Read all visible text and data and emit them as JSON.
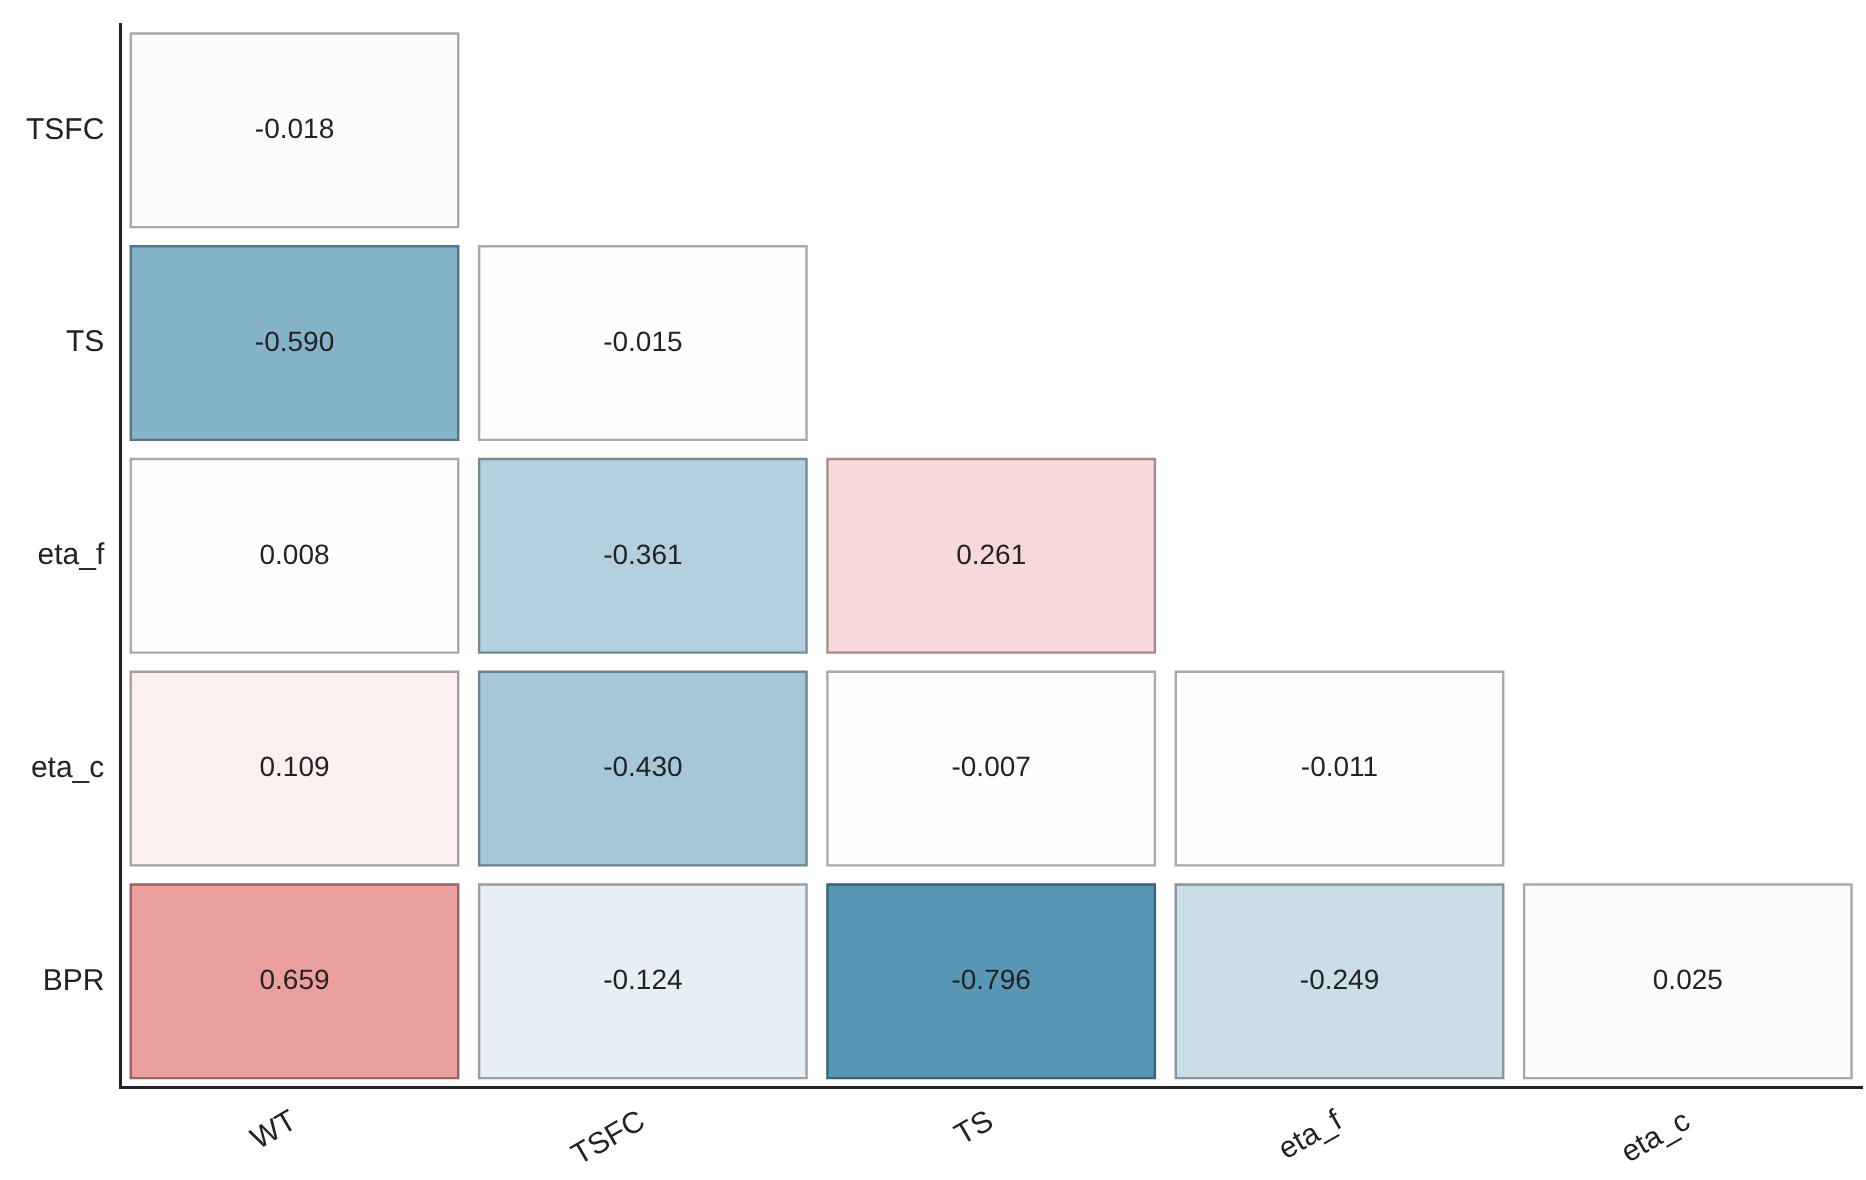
{
  "chart_data": {
    "type": "heatmap",
    "categories": [
      "WT",
      "TSFC",
      "TS",
      "eta_f",
      "eta_c"
    ],
    "y_categories": [
      "TSFC",
      "TS",
      "eta_f",
      "eta_c",
      "BPR"
    ],
    "cells": [
      [
        -0.018,
        null,
        null,
        null,
        null
      ],
      [
        -0.59,
        -0.015,
        null,
        null,
        null
      ],
      [
        0.008,
        -0.361,
        0.261,
        null,
        null
      ],
      [
        0.109,
        -0.43,
        -0.007,
        -0.011,
        null
      ],
      [
        0.659,
        -0.124,
        -0.796,
        -0.249,
        0.025
      ]
    ],
    "cell_labels": [
      [
        "-0.018",
        null,
        null,
        null,
        null
      ],
      [
        "-0.590",
        "-0.015",
        null,
        null,
        null
      ],
      [
        "0.008",
        "-0.361",
        "0.261",
        null,
        null
      ],
      [
        "0.109",
        "-0.430",
        "-0.007",
        "-0.011",
        null
      ],
      [
        "0.659",
        "-0.124",
        "-0.796",
        "-0.249",
        "0.025"
      ]
    ]
  }
}
